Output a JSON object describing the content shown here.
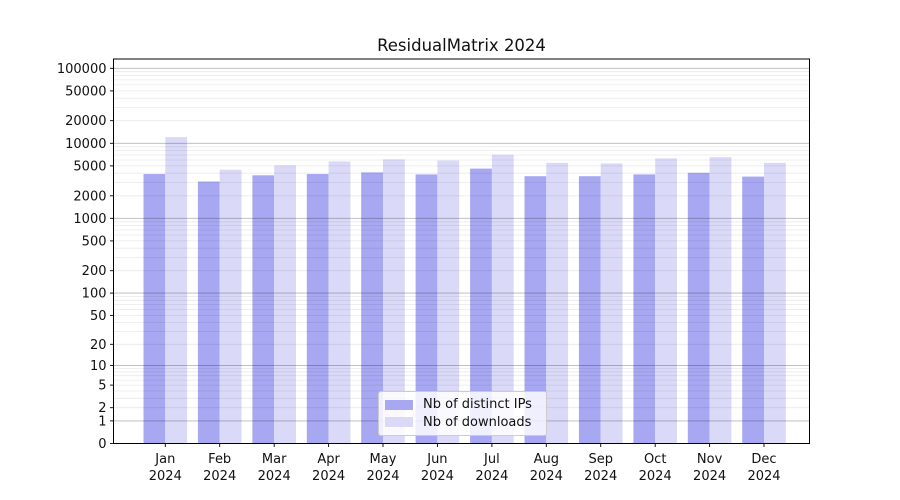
{
  "title": "ResidualMatrix 2024",
  "colors": {
    "distinct_ips_bar": "#a8a8f2",
    "downloads_bar": "#dadaf8",
    "major_gridline": "rgba(0,0,0,0.28)",
    "minor_gridline": "rgba(0,0,0,0.085)",
    "axis_spine": "#000000",
    "tick_text": "#111111",
    "legend_border": "#cccccc"
  },
  "chart_data": {
    "type": "bar",
    "title": "ResidualMatrix 2024",
    "categories": [
      "Jan 2024",
      "Feb 2024",
      "Mar 2024",
      "Apr 2024",
      "May 2024",
      "Jun 2024",
      "Jul 2024",
      "Aug 2024",
      "Sep 2024",
      "Oct 2024",
      "Nov 2024",
      "Dec 2024"
    ],
    "series": [
      {
        "name": "Nb of distinct IPs",
        "values": [
          3900,
          3100,
          3750,
          3900,
          4100,
          3850,
          4600,
          3650,
          3650,
          3850,
          4050,
          3600
        ]
      },
      {
        "name": "Nb of downloads",
        "values": [
          12100,
          4450,
          5100,
          5750,
          6100,
          5900,
          7050,
          5500,
          5400,
          6300,
          6550,
          5500
        ]
      }
    ],
    "xlabel": "",
    "ylabel": "",
    "yscale": "log1p",
    "yticks": [
      100000,
      50000,
      20000,
      10000,
      5000,
      2000,
      1000,
      500,
      200,
      100,
      50,
      20,
      10,
      5,
      2,
      1,
      0
    ],
    "ylim": [
      0,
      133000
    ],
    "grid": true,
    "legend_position": "lower center"
  }
}
